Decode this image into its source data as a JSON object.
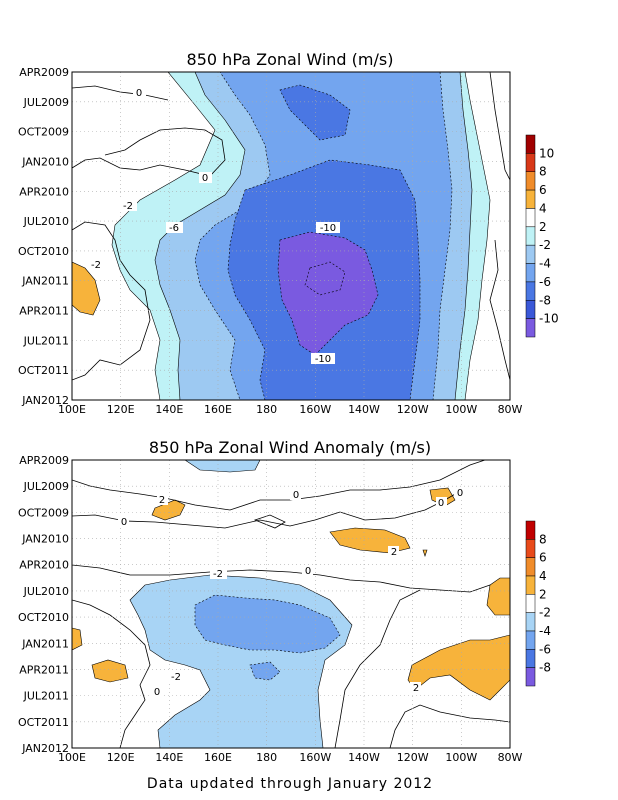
{
  "chart_data": [
    {
      "type": "heatmap",
      "title": "850 hPa Zonal Wind (m/s)",
      "xlabel": "",
      "ylabel": "",
      "x_ticks": [
        "100E",
        "120E",
        "140E",
        "160E",
        "180",
        "160W",
        "140W",
        "120W",
        "100W",
        "80W"
      ],
      "y_ticks": [
        "APR2009",
        "JUL2009",
        "OCT2009",
        "JAN2010",
        "APR2010",
        "JUL2010",
        "OCT2010",
        "JAN2011",
        "APR2011",
        "JUL2011",
        "OCT2011",
        "JAN2012"
      ],
      "colorbar": {
        "levels": [
          "10",
          "8",
          "6",
          "4",
          "2",
          "-2",
          "-4",
          "-6",
          "-8",
          "-10"
        ],
        "colors": [
          "#a00000",
          "#d83818",
          "#f08c2a",
          "#f7b33b",
          "#ffffff",
          "#bff2f6",
          "#9dc9f2",
          "#73a5ef",
          "#4a77e3",
          "#3a58d8",
          "#7a5ae0"
        ]
      },
      "regions": [
        {
          "level": "-4",
          "color": "#bff2f6"
        },
        {
          "level": "-6",
          "color": "#9dc9f2"
        },
        {
          "level": "-8",
          "color": "#73a5ef"
        },
        {
          "level": "-10",
          "color": "#4a77e3"
        },
        {
          "level": "-12",
          "color": "#7a5ae0"
        },
        {
          "level": "2",
          "color": "#f7b33b"
        }
      ],
      "contour_labels": [
        "0",
        "0",
        "-2",
        "-2",
        "-6",
        "-10",
        "-10"
      ]
    },
    {
      "type": "heatmap",
      "title": "850 hPa Zonal Wind Anomaly (m/s)",
      "xlabel": "",
      "ylabel": "",
      "x_ticks": [
        "100E",
        "120E",
        "140E",
        "160E",
        "180",
        "160W",
        "140W",
        "120W",
        "100W",
        "80W"
      ],
      "y_ticks": [
        "APR2009",
        "JUL2009",
        "OCT2009",
        "JAN2010",
        "APR2010",
        "JUL2010",
        "OCT2010",
        "JAN2011",
        "APR2011",
        "JUL2011",
        "OCT2011",
        "JAN2012"
      ],
      "colorbar": {
        "levels": [
          "8",
          "6",
          "4",
          "2",
          "-2",
          "-4",
          "-6",
          "-8"
        ],
        "colors": [
          "#c00000",
          "#e84a1a",
          "#f08c2a",
          "#f7b33b",
          "#ffffff",
          "#a8d4f5",
          "#73a5ef",
          "#4a77e3",
          "#7a5ae0"
        ]
      },
      "regions": [
        {
          "level": "-2",
          "color": "#a8d4f5"
        },
        {
          "level": "-4",
          "color": "#73a5ef"
        },
        {
          "level": "2",
          "color": "#f7b33b"
        }
      ],
      "contour_labels": [
        "2",
        "0",
        "0",
        "0",
        "0",
        "2",
        "-2",
        "0",
        "-2",
        "0",
        "2"
      ]
    }
  ],
  "footer": "Data updated through January 2012"
}
